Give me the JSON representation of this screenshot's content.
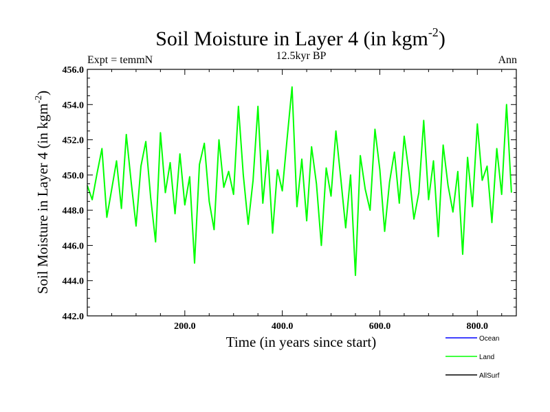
{
  "chart_data": {
    "type": "line",
    "title": "Soil Moisture in Layer 4 (in kgm",
    "title_sup": "-2",
    "title_close": ")",
    "left_label": "Expt = temmN",
    "center_label": "12.5kyr BP",
    "right_label": "Ann",
    "xlabel": "Time (in years since start)",
    "ylabel": "Soil Moisture in Layer 4 (in kgm",
    "ylabel_sup": "-2",
    "ylabel_close": ")",
    "xlim": [
      0,
      880
    ],
    "ylim": [
      442,
      456
    ],
    "xticks": [
      200,
      400,
      600,
      800
    ],
    "xtick_labels": [
      "200.0",
      "400.0",
      "600.0",
      "800.0"
    ],
    "yticks": [
      442,
      444,
      446,
      448,
      450,
      452,
      454,
      456
    ],
    "ytick_labels": [
      "442.0",
      "444.0",
      "446.0",
      "448.0",
      "450.0",
      "452.0",
      "454.0",
      "456.0"
    ],
    "series": [
      {
        "name": "Ocean",
        "color": "#0000ff",
        "values": []
      },
      {
        "name": "Land",
        "color": "#00ff00",
        "x_start": 0,
        "x_step": 10,
        "values": [
          449.4,
          448.6,
          450.1,
          451.5,
          447.6,
          449.2,
          450.8,
          448.1,
          452.3,
          449.6,
          447.1,
          450.5,
          451.9,
          448.7,
          446.2,
          452.4,
          449.0,
          450.7,
          447.8,
          451.2,
          448.3,
          449.9,
          445.0,
          450.6,
          451.8,
          448.5,
          446.9,
          452.0,
          449.3,
          450.2,
          448.9,
          453.9,
          450.0,
          447.2,
          449.7,
          453.9,
          448.4,
          451.4,
          446.7,
          450.3,
          449.1,
          452.1,
          455.0,
          448.2,
          450.9,
          447.4,
          451.6,
          449.5,
          446.0,
          450.4,
          448.8,
          452.5,
          449.8,
          447.0,
          450.0,
          444.3,
          451.1,
          449.2,
          448.0,
          452.6,
          450.3,
          446.8,
          449.6,
          451.3,
          448.4,
          452.2,
          450.1,
          447.5,
          449.0,
          453.1,
          448.6,
          450.8,
          446.5,
          451.7,
          449.4,
          447.9,
          450.2,
          445.5,
          451.0,
          448.2,
          452.9,
          449.7,
          450.5,
          447.3,
          451.5,
          448.9,
          454.0,
          449.0
        ]
      },
      {
        "name": "AllSurf",
        "color": "#000000",
        "values": []
      }
    ],
    "legend_position": "bottom-right"
  }
}
